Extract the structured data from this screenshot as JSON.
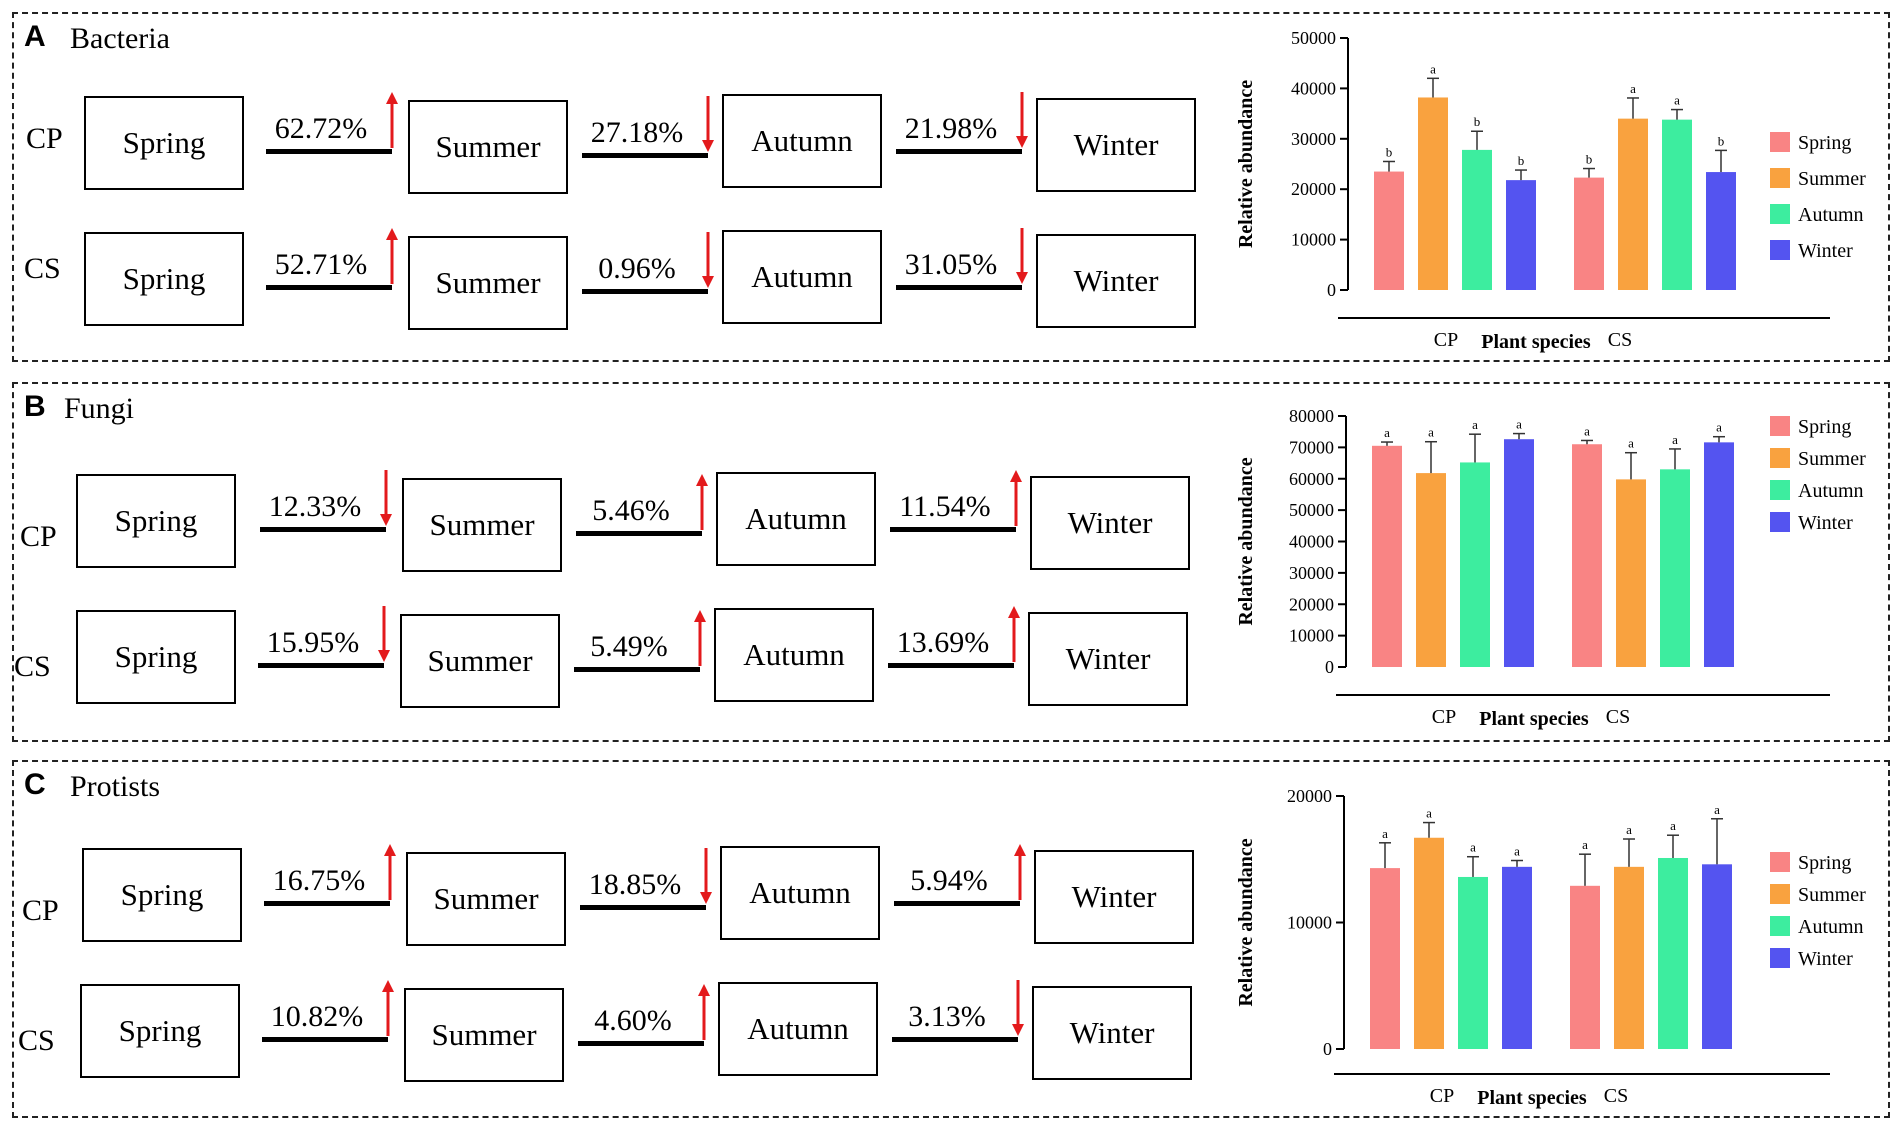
{
  "colors": {
    "spring": "#f98484",
    "summer": "#f9a23f",
    "autumn": "#3ded9f",
    "winter": "#5454f0",
    "arrow": "#e31a1c"
  },
  "panels": [
    {
      "letter": "A",
      "title": "Bacteria",
      "rows": [
        {
          "label": "CP",
          "seasons": [
            "Spring",
            "Summer",
            "Autumn",
            "Winter"
          ],
          "changes": [
            {
              "pct": "62.72%",
              "dir": "up"
            },
            {
              "pct": "27.18%",
              "dir": "down"
            },
            {
              "pct": "21.98%",
              "dir": "down"
            }
          ]
        },
        {
          "label": "CS",
          "seasons": [
            "Spring",
            "Summer",
            "Autumn",
            "Winter"
          ],
          "changes": [
            {
              "pct": "52.71%",
              "dir": "up"
            },
            {
              "pct": "0.96%",
              "dir": "down"
            },
            {
              "pct": "31.05%",
              "dir": "down"
            }
          ]
        }
      ]
    },
    {
      "letter": "B",
      "title": "Fungi",
      "rows": [
        {
          "label": "CP",
          "seasons": [
            "Spring",
            "Summer",
            "Autumn",
            "Winter"
          ],
          "changes": [
            {
              "pct": "12.33%",
              "dir": "down"
            },
            {
              "pct": "5.46%",
              "dir": "up"
            },
            {
              "pct": "11.54%",
              "dir": "up"
            }
          ]
        },
        {
          "label": "CS",
          "seasons": [
            "Spring",
            "Summer",
            "Autumn",
            "Winter"
          ],
          "changes": [
            {
              "pct": "15.95%",
              "dir": "down"
            },
            {
              "pct": "5.49%",
              "dir": "up"
            },
            {
              "pct": "13.69%",
              "dir": "up"
            }
          ]
        }
      ]
    },
    {
      "letter": "C",
      "title": "Protists",
      "rows": [
        {
          "label": "CP",
          "seasons": [
            "Spring",
            "Summer",
            "Autumn",
            "Winter"
          ],
          "changes": [
            {
              "pct": "16.75%",
              "dir": "up"
            },
            {
              "pct": "18.85%",
              "dir": "down"
            },
            {
              "pct": "5.94%",
              "dir": "up"
            }
          ]
        },
        {
          "label": "CS",
          "seasons": [
            "Spring",
            "Summer",
            "Autumn",
            "Winter"
          ],
          "changes": [
            {
              "pct": "10.82%",
              "dir": "up"
            },
            {
              "pct": "4.60%",
              "dir": "up"
            },
            {
              "pct": "3.13%",
              "dir": "down"
            }
          ]
        }
      ]
    }
  ],
  "chart_data": [
    {
      "type": "bar",
      "panel": "A",
      "title": "",
      "xlabel": "Plant species",
      "ylabel": "Relative abundance",
      "categories": [
        "CP",
        "CS"
      ],
      "ylim": [
        0,
        50000
      ],
      "yticks": [
        0,
        10000,
        20000,
        30000,
        40000,
        50000
      ],
      "legend_position": "right",
      "series": [
        {
          "name": "Spring",
          "values": [
            23500,
            22300
          ],
          "errors": [
            2000,
            1800
          ],
          "labels": [
            "b",
            "b"
          ]
        },
        {
          "name": "Summer",
          "values": [
            38200,
            34000
          ],
          "errors": [
            3800,
            4100
          ],
          "labels": [
            "a",
            "a"
          ]
        },
        {
          "name": "Autumn",
          "values": [
            27800,
            33800
          ],
          "errors": [
            3700,
            2000
          ],
          "labels": [
            "b",
            "a"
          ]
        },
        {
          "name": "Winter",
          "values": [
            21800,
            23400
          ],
          "errors": [
            2000,
            4300
          ],
          "labels": [
            "b",
            "b"
          ]
        }
      ]
    },
    {
      "type": "bar",
      "panel": "B",
      "title": "",
      "xlabel": "Plant species",
      "ylabel": "Relative abundance",
      "categories": [
        "CP",
        "CS"
      ],
      "ylim": [
        0,
        80000
      ],
      "yticks": [
        0,
        10000,
        20000,
        30000,
        40000,
        50000,
        60000,
        70000,
        80000
      ],
      "legend_position": "right",
      "series": [
        {
          "name": "Spring",
          "values": [
            70500,
            71000
          ],
          "errors": [
            1200,
            1200
          ],
          "labels": [
            "a",
            "a"
          ]
        },
        {
          "name": "Summer",
          "values": [
            61800,
            59800
          ],
          "errors": [
            10000,
            8500
          ],
          "labels": [
            "a",
            "a"
          ]
        },
        {
          "name": "Autumn",
          "values": [
            65200,
            63000
          ],
          "errors": [
            9000,
            6500
          ],
          "labels": [
            "a",
            "a"
          ]
        },
        {
          "name": "Winter",
          "values": [
            72600,
            71600
          ],
          "errors": [
            1800,
            1800
          ],
          "labels": [
            "a",
            "a"
          ]
        }
      ]
    },
    {
      "type": "bar",
      "panel": "C",
      "title": "",
      "xlabel": "Plant species",
      "ylabel": "Relative abundance",
      "categories": [
        "CP",
        "CS"
      ],
      "ylim": [
        0,
        20000
      ],
      "yticks": [
        0,
        10000,
        20000
      ],
      "legend_position": "right",
      "series": [
        {
          "name": "Spring",
          "values": [
            14300,
            12900
          ],
          "errors": [
            2000,
            2500
          ],
          "labels": [
            "a",
            "a"
          ]
        },
        {
          "name": "Summer",
          "values": [
            16700,
            14400
          ],
          "errors": [
            1200,
            2200
          ],
          "labels": [
            "a",
            "a"
          ]
        },
        {
          "name": "Autumn",
          "values": [
            13600,
            15100
          ],
          "errors": [
            1600,
            1800
          ],
          "labels": [
            "a",
            "a"
          ]
        },
        {
          "name": "Winter",
          "values": [
            14400,
            14600
          ],
          "errors": [
            500,
            3600
          ],
          "labels": [
            "a",
            "a"
          ]
        }
      ]
    }
  ]
}
